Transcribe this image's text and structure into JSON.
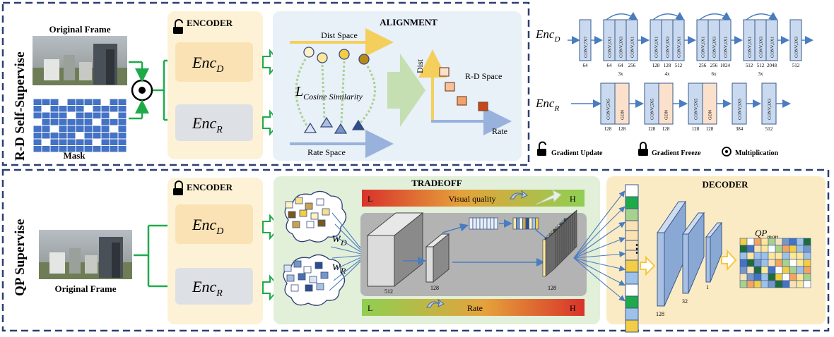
{
  "top": {
    "side_label": "R-D Self-Supervise",
    "original_frame_label": "Original Frame",
    "mask_label": "Mask",
    "encoder_label": "ENCODER",
    "enc_d": "Enc",
    "enc_d_sub": "D",
    "enc_r": "Enc",
    "enc_r_sub": "R",
    "alignment_title": "ALIGNMENT",
    "dist_space": "Dist Space",
    "rate_space": "Rate Space",
    "cosine_L": "L",
    "cosine_sub": "Cosine  Similarity",
    "rd_space": "R-D Space",
    "dist_axis": "Dist",
    "rate_axis": "Rate"
  },
  "arch": {
    "encd_label": "Enc",
    "encd_sub": "D",
    "encr_label": "Enc",
    "encr_sub": "R",
    "encd_blocks": [
      {
        "layers": [
          "CONV,7X7"
        ],
        "nums": [
          "64"
        ],
        "repeat": ""
      },
      {
        "layers": [
          "CONV,1X1",
          "CONV,3X3",
          "CONV,1X1"
        ],
        "nums": [
          "64",
          "64",
          "256"
        ],
        "repeat": "3x"
      },
      {
        "layers": [
          "CONV,1X1",
          "CONV,3X3",
          "CONV,1X1"
        ],
        "nums": [
          "128",
          "128",
          "512"
        ],
        "repeat": "4x"
      },
      {
        "layers": [
          "CONV,1X1",
          "CONV,3X3",
          "CONV,1X1"
        ],
        "nums": [
          "256",
          "256",
          "1024"
        ],
        "repeat": "6x"
      },
      {
        "layers": [
          "CONV,1X1",
          "CONV,3X3",
          "CONV,1X1"
        ],
        "nums": [
          "512",
          "512",
          "2048"
        ],
        "repeat": "3x"
      },
      {
        "layers": [
          "CONV,3X3"
        ],
        "nums": [
          "512"
        ],
        "repeat": ""
      }
    ],
    "encr_blocks": [
      {
        "layers": [
          "CONV,5X5",
          "GDN"
        ],
        "nums": [
          "128",
          "128"
        ]
      },
      {
        "layers": [
          "CONV,5X5",
          "GDN"
        ],
        "nums": [
          "128",
          "128"
        ]
      },
      {
        "layers": [
          "CONV,5X5",
          "GDN"
        ],
        "nums": [
          "128",
          "128"
        ]
      },
      {
        "layers": [
          "CONV,5X5"
        ],
        "nums": [
          "384"
        ]
      },
      {
        "layers": [
          "CONV,3X3"
        ],
        "nums": [
          "512"
        ]
      }
    ]
  },
  "legend": {
    "gradient_update": "Gradient Update",
    "gradient_freeze": "Gradient Freeze",
    "multiplication": "Multiplication"
  },
  "bottom": {
    "side_label": "QP Supervise",
    "original_frame_label": "Original Frame",
    "encoder_label": "ENCODER",
    "enc_d": "Enc",
    "enc_d_sub": "D",
    "enc_r": "Enc",
    "enc_r_sub": "R",
    "w_d": "w",
    "w_d_sub": "D",
    "w_r": "w",
    "w_r_sub": "R",
    "tradeoff_title": "TRADEOFF",
    "visual_quality": "Visual quality",
    "rate": "Rate",
    "low": "L",
    "high": "H",
    "dim_512": "512",
    "dim_128a": "128",
    "dim_128b": "128",
    "decoder_title": "DECODER",
    "dec_128": "128",
    "dec_32": "32",
    "dec_1": "1",
    "qp_map": "QP",
    "qp_map_sub": "map",
    "dots": "⋮"
  },
  "colors": {
    "dashed_border": "#2c3e73",
    "encoder_bg": "#fdf2d6",
    "alignment_bg": "#e8f0f8",
    "tradeoff_bg": "#e2efd9",
    "decoder_bg": "#fbebc4",
    "green_arrow": "#1faa4a",
    "block_blue": "#c9d9ef",
    "gdn_peach": "#fbe1cc"
  }
}
